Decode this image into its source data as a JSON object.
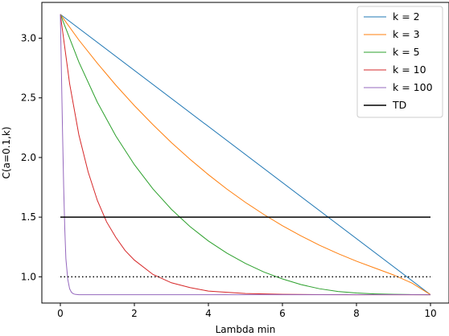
{
  "chart_data": {
    "type": "line",
    "title": "",
    "xlabel": "Lambda min",
    "ylabel": "C(a=0.1,k)",
    "xlim": [
      -0.5,
      10.5
    ],
    "ylim": [
      0.78,
      3.3
    ],
    "xticks": [
      0,
      2,
      4,
      6,
      8,
      10
    ],
    "xtick_labels": [
      "0",
      "2",
      "4",
      "6",
      "8",
      "10"
    ],
    "yticks": [
      1.0,
      1.5,
      2.0,
      2.5,
      3.0
    ],
    "ytick_labels": [
      "1.0",
      "1.5",
      "2.0",
      "2.5",
      "3.0"
    ],
    "grid": false,
    "legend_position": "top-right",
    "series": [
      {
        "name": "k = 2",
        "color": "#1f77b4",
        "style": "solid",
        "x": [
          0,
          10
        ],
        "y": [
          3.2,
          0.85
        ]
      },
      {
        "name": "k = 3",
        "color": "#ff7f0e",
        "style": "solid",
        "x": [
          0,
          0.5,
          1,
          1.5,
          2,
          2.5,
          3,
          3.5,
          4,
          4.5,
          5,
          5.5,
          6,
          6.5,
          7,
          7.5,
          8,
          8.5,
          9,
          9.5,
          10
        ],
        "y": [
          3.2,
          2.985,
          2.79,
          2.606,
          2.435,
          2.276,
          2.125,
          1.986,
          1.856,
          1.735,
          1.624,
          1.522,
          1.428,
          1.343,
          1.265,
          1.195,
          1.131,
          1.073,
          1.016,
          0.947,
          0.85
        ]
      },
      {
        "name": "k = 5",
        "color": "#2ca02c",
        "style": "solid",
        "x": [
          0,
          0.5,
          1,
          1.5,
          2,
          2.5,
          3,
          3.5,
          4,
          4.5,
          5,
          5.5,
          6,
          6.5,
          7,
          7.5,
          8,
          8.5,
          9,
          9.5,
          10
        ],
        "y": [
          3.2,
          2.8,
          2.463,
          2.18,
          1.94,
          1.737,
          1.566,
          1.422,
          1.3,
          1.198,
          1.112,
          1.04,
          0.982,
          0.935,
          0.9,
          0.877,
          0.864,
          0.857,
          0.853,
          0.851,
          0.85
        ]
      },
      {
        "name": "k = 10",
        "color": "#d62728",
        "style": "solid",
        "x": [
          0,
          0.25,
          0.5,
          0.75,
          1,
          1.25,
          1.5,
          1.75,
          2,
          2.5,
          3,
          3.5,
          4,
          5,
          6,
          7,
          8,
          10
        ],
        "y": [
          3.2,
          2.62,
          2.19,
          1.88,
          1.64,
          1.46,
          1.33,
          1.22,
          1.14,
          1.02,
          0.95,
          0.91,
          0.88,
          0.86,
          0.853,
          0.851,
          0.85,
          0.85
        ]
      },
      {
        "name": "k = 100",
        "color": "#9467bd",
        "style": "solid",
        "x": [
          0,
          0.03,
          0.06,
          0.09,
          0.12,
          0.15,
          0.2,
          0.25,
          0.3,
          0.35,
          0.4,
          0.5,
          0.6,
          1,
          10
        ],
        "y": [
          3.2,
          2.7,
          2.2,
          1.75,
          1.4,
          1.15,
          0.98,
          0.9,
          0.87,
          0.858,
          0.853,
          0.85,
          0.85,
          0.85,
          0.85
        ]
      },
      {
        "name": "TD",
        "color": "#000000",
        "style": "solid",
        "x": [
          0,
          10
        ],
        "y": [
          1.5,
          1.5
        ]
      },
      {
        "name": "",
        "color": "#000000",
        "style": "dotted",
        "x": [
          0,
          10
        ],
        "y": [
          1.0,
          1.0
        ]
      }
    ]
  }
}
